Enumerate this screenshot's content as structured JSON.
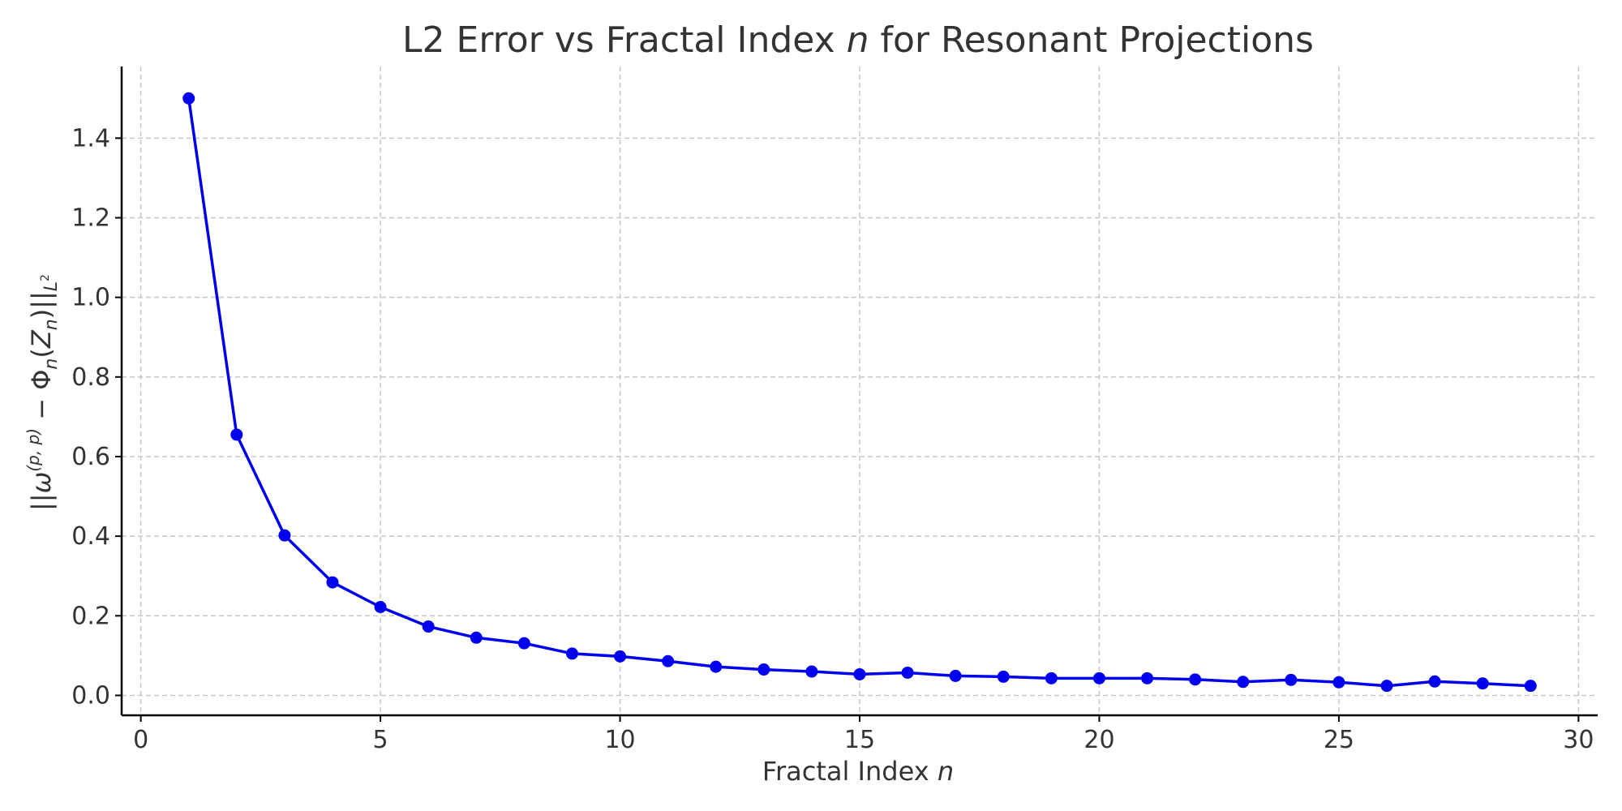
{
  "chart_data": {
    "type": "line",
    "title": {
      "prefix": "L2 Error vs Fractal Index ",
      "var": "n",
      "suffix": " for Resonant Projections"
    },
    "xlabel": {
      "prefix": "Fractal Index ",
      "var": "n"
    },
    "ylabel": {
      "open": "||",
      "omega": "ω",
      "omega_sup": "(p, p)",
      "minus": " − ",
      "phi": "Φ",
      "phi_sub": "n",
      "paren_open": "(",
      "z": "Z",
      "z_sub": "n",
      "paren_close": ")",
      "close": "||",
      "norm_sub": "L",
      "norm_sub_sup": "2"
    },
    "xlim": [
      -0.4,
      30.4
    ],
    "ylim": [
      -0.05,
      1.58
    ],
    "xticks": [
      0,
      5,
      10,
      15,
      20,
      25,
      30
    ],
    "yticks": [
      0.0,
      0.2,
      0.4,
      0.6,
      0.8,
      1.0,
      1.2,
      1.4
    ],
    "xtick_labels": [
      "0",
      "5",
      "10",
      "15",
      "20",
      "25",
      "30"
    ],
    "ytick_labels": [
      "0.0",
      "0.2",
      "0.4",
      "0.6",
      "0.8",
      "1.0",
      "1.2",
      "1.4"
    ],
    "grid": true,
    "series": [
      {
        "color": "#0000ee",
        "marker": "circle",
        "x": [
          1,
          2,
          3,
          4,
          5,
          6,
          7,
          8,
          9,
          10,
          11,
          12,
          13,
          14,
          15,
          16,
          17,
          18,
          19,
          20,
          21,
          22,
          23,
          24,
          25,
          26,
          27,
          28,
          29
        ],
        "y": [
          1.5,
          0.655,
          0.402,
          0.284,
          0.222,
          0.173,
          0.145,
          0.131,
          0.105,
          0.098,
          0.086,
          0.072,
          0.065,
          0.06,
          0.053,
          0.057,
          0.049,
          0.047,
          0.043,
          0.043,
          0.043,
          0.04,
          0.034,
          0.039,
          0.033,
          0.024,
          0.035,
          0.03,
          0.024
        ]
      }
    ]
  }
}
